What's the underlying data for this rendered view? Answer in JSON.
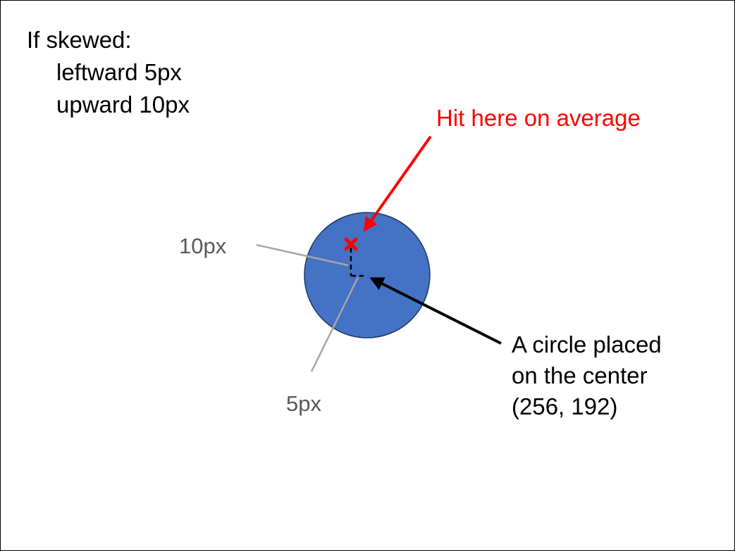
{
  "skew_note": {
    "line1": "If skewed:",
    "line2": "leftward 5px",
    "line3": "upward 10px"
  },
  "hit_label": "Hit here on average",
  "circle_label": {
    "line1": "A circle placed",
    "line2": "on the center",
    "line3": "(256, 192)"
  },
  "dimension_labels": {
    "vertical": "10px",
    "horizontal": "5px"
  },
  "colors": {
    "circle_fill": "#4472c4",
    "circle_stroke": "#1f3864",
    "hit_marker": "#ff0000",
    "hit_text": "#ff0000",
    "leader_lines": "#a6a6a6",
    "dimension_text": "#595959"
  }
}
